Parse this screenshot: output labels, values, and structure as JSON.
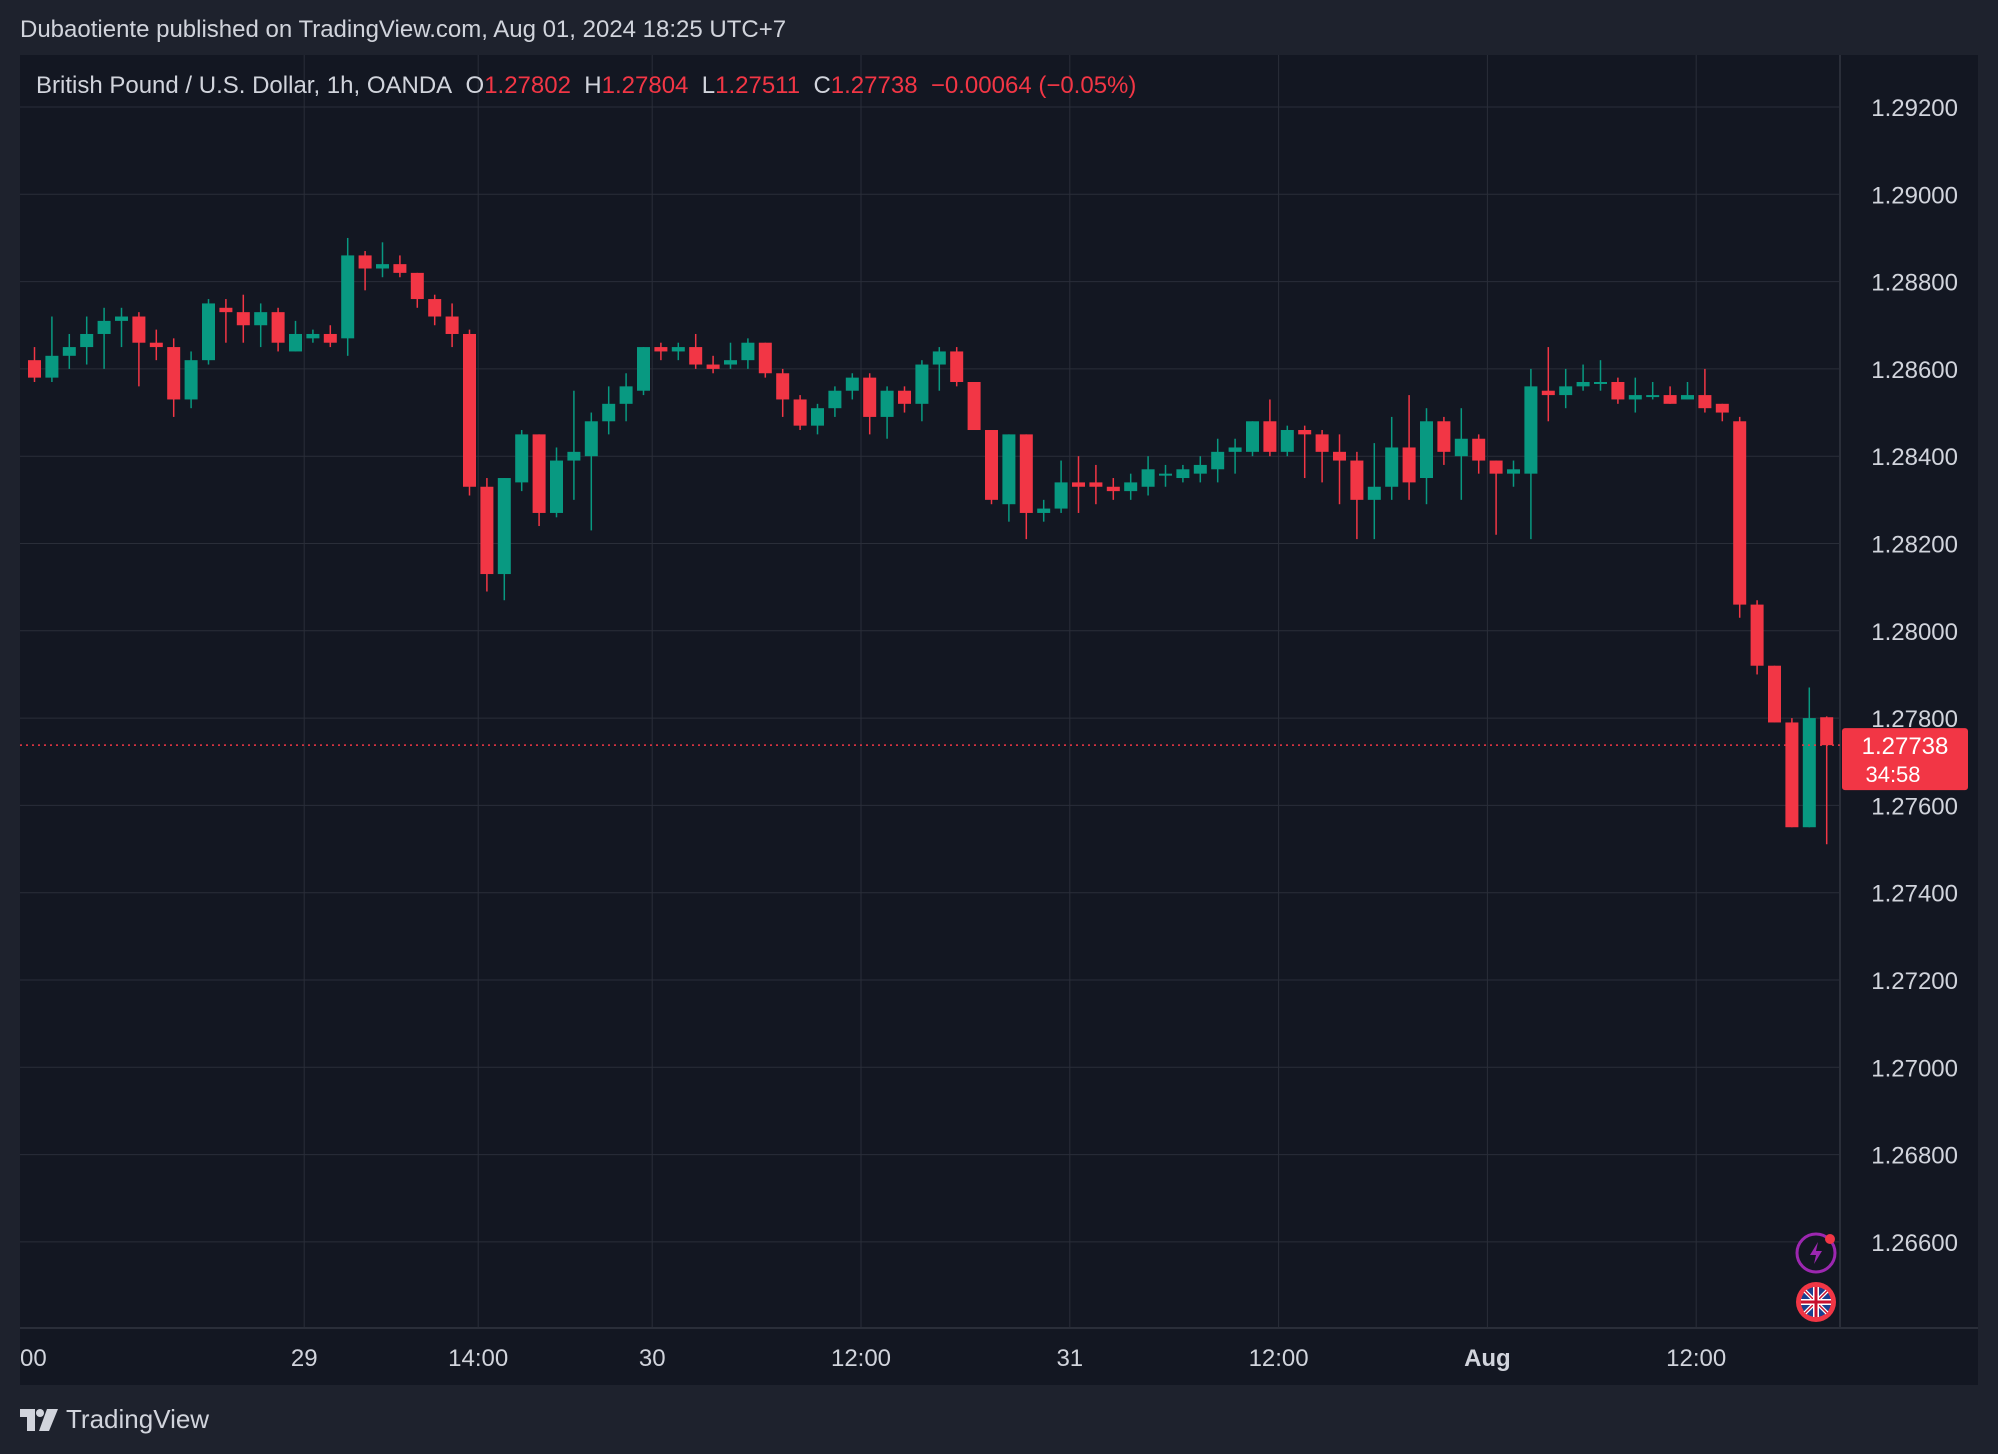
{
  "header": {
    "published": "Dubaotiente published on TradingView.com, Aug 01, 2024 18:25 UTC+7"
  },
  "legend": {
    "symbol": "British Pound / U.S. Dollar, 1h, OANDA",
    "o_label": "O",
    "o_value": "1.27802",
    "h_label": "H",
    "h_value": "1.27804",
    "l_label": "L",
    "l_value": "1.27511",
    "c_label": "C",
    "c_value": "1.27738",
    "change": "−0.00064 (−0.05%)"
  },
  "price_tag": {
    "price": "1.27738",
    "countdown": "34:58"
  },
  "footer": {
    "brand": "TradingView"
  },
  "colors": {
    "up": "#089981",
    "down": "#f23645",
    "background": "#131722",
    "frame": "#1e222d",
    "grid": "#2a2e39",
    "text": "#d1d4dc"
  },
  "icons": [
    "lightning-icon",
    "uk-flag-icon",
    "tradingview-logo-icon"
  ],
  "chart_data": {
    "type": "candlestick",
    "title": "British Pound / U.S. Dollar, 1h, OANDA",
    "ylim": [
      1.2645,
      1.2935
    ],
    "y_ticks": [
      "1.29200",
      "1.29000",
      "1.28800",
      "1.28600",
      "1.28400",
      "1.28200",
      "1.28000",
      "1.27800",
      "1.27600",
      "1.27400",
      "1.27200",
      "1.27000",
      "1.26800",
      "1.26600"
    ],
    "x_ticks": [
      {
        "label": "00",
        "index": 0
      },
      {
        "label": "29",
        "index": 15.5
      },
      {
        "label": "14:00",
        "index": 25.5
      },
      {
        "label": "30",
        "index": 35.5
      },
      {
        "label": "12:00",
        "index": 47.5
      },
      {
        "label": "31",
        "index": 59.5
      },
      {
        "label": "12:00",
        "index": 71.5
      },
      {
        "label": "Aug",
        "index": 83.5
      },
      {
        "label": "12:00",
        "index": 95.5
      }
    ],
    "grid": true,
    "last_price": 1.27738,
    "candles": [
      {
        "o": 1.2862,
        "h": 1.2865,
        "l": 1.2857,
        "c": 1.2858
      },
      {
        "o": 1.2858,
        "h": 1.2872,
        "l": 1.2857,
        "c": 1.2863
      },
      {
        "o": 1.2863,
        "h": 1.2868,
        "l": 1.286,
        "c": 1.2865
      },
      {
        "o": 1.2865,
        "h": 1.2872,
        "l": 1.2861,
        "c": 1.2868
      },
      {
        "o": 1.2868,
        "h": 1.2874,
        "l": 1.286,
        "c": 1.2871
      },
      {
        "o": 1.2871,
        "h": 1.2874,
        "l": 1.2865,
        "c": 1.2872
      },
      {
        "o": 1.2872,
        "h": 1.2873,
        "l": 1.2856,
        "c": 1.2866
      },
      {
        "o": 1.2866,
        "h": 1.2869,
        "l": 1.2862,
        "c": 1.2865
      },
      {
        "o": 1.2865,
        "h": 1.2867,
        "l": 1.2849,
        "c": 1.2853
      },
      {
        "o": 1.2853,
        "h": 1.2864,
        "l": 1.2851,
        "c": 1.2862
      },
      {
        "o": 1.2862,
        "h": 1.2876,
        "l": 1.2861,
        "c": 1.2875
      },
      {
        "o": 1.2874,
        "h": 1.2876,
        "l": 1.2866,
        "c": 1.2873
      },
      {
        "o": 1.2873,
        "h": 1.2877,
        "l": 1.2866,
        "c": 1.287
      },
      {
        "o": 1.287,
        "h": 1.2875,
        "l": 1.2865,
        "c": 1.2873
      },
      {
        "o": 1.2873,
        "h": 1.2874,
        "l": 1.2864,
        "c": 1.2866
      },
      {
        "o": 1.2864,
        "h": 1.2871,
        "l": 1.2864,
        "c": 1.2868
      },
      {
        "o": 1.2867,
        "h": 1.2869,
        "l": 1.2866,
        "c": 1.2868
      },
      {
        "o": 1.2868,
        "h": 1.287,
        "l": 1.2865,
        "c": 1.2866
      },
      {
        "o": 1.2867,
        "h": 1.289,
        "l": 1.2863,
        "c": 1.2886
      },
      {
        "o": 1.2886,
        "h": 1.2887,
        "l": 1.2878,
        "c": 1.2883
      },
      {
        "o": 1.2883,
        "h": 1.2889,
        "l": 1.2881,
        "c": 1.2884
      },
      {
        "o": 1.2884,
        "h": 1.2886,
        "l": 1.2881,
        "c": 1.2882
      },
      {
        "o": 1.2882,
        "h": 1.2882,
        "l": 1.2874,
        "c": 1.2876
      },
      {
        "o": 1.2876,
        "h": 1.2877,
        "l": 1.287,
        "c": 1.2872
      },
      {
        "o": 1.2872,
        "h": 1.2875,
        "l": 1.2865,
        "c": 1.2868
      },
      {
        "o": 1.2868,
        "h": 1.2869,
        "l": 1.2831,
        "c": 1.2833
      },
      {
        "o": 1.2833,
        "h": 1.2835,
        "l": 1.2809,
        "c": 1.2813
      },
      {
        "o": 1.2813,
        "h": 1.2835,
        "l": 1.2807,
        "c": 1.2835
      },
      {
        "o": 1.2834,
        "h": 1.2846,
        "l": 1.2832,
        "c": 1.2845
      },
      {
        "o": 1.2845,
        "h": 1.2845,
        "l": 1.2824,
        "c": 1.2827
      },
      {
        "o": 1.2827,
        "h": 1.2842,
        "l": 1.2826,
        "c": 1.2839
      },
      {
        "o": 1.2839,
        "h": 1.2855,
        "l": 1.283,
        "c": 1.2841
      },
      {
        "o": 1.284,
        "h": 1.285,
        "l": 1.2823,
        "c": 1.2848
      },
      {
        "o": 1.2848,
        "h": 1.2856,
        "l": 1.2845,
        "c": 1.2852
      },
      {
        "o": 1.2852,
        "h": 1.2859,
        "l": 1.2848,
        "c": 1.2856
      },
      {
        "o": 1.2855,
        "h": 1.2865,
        "l": 1.2854,
        "c": 1.2865
      },
      {
        "o": 1.2865,
        "h": 1.2866,
        "l": 1.2862,
        "c": 1.2864
      },
      {
        "o": 1.2864,
        "h": 1.2866,
        "l": 1.2862,
        "c": 1.2865
      },
      {
        "o": 1.2865,
        "h": 1.2868,
        "l": 1.286,
        "c": 1.2861
      },
      {
        "o": 1.2861,
        "h": 1.2863,
        "l": 1.2859,
        "c": 1.286
      },
      {
        "o": 1.2861,
        "h": 1.2866,
        "l": 1.286,
        "c": 1.2862
      },
      {
        "o": 1.2862,
        "h": 1.2867,
        "l": 1.286,
        "c": 1.2866
      },
      {
        "o": 1.2866,
        "h": 1.2866,
        "l": 1.2858,
        "c": 1.2859
      },
      {
        "o": 1.2859,
        "h": 1.286,
        "l": 1.2849,
        "c": 1.2853
      },
      {
        "o": 1.2853,
        "h": 1.2854,
        "l": 1.2846,
        "c": 1.2847
      },
      {
        "o": 1.2847,
        "h": 1.2852,
        "l": 1.2845,
        "c": 1.2851
      },
      {
        "o": 1.2851,
        "h": 1.2856,
        "l": 1.2849,
        "c": 1.2855
      },
      {
        "o": 1.2855,
        "h": 1.2859,
        "l": 1.2853,
        "c": 1.2858
      },
      {
        "o": 1.2858,
        "h": 1.2859,
        "l": 1.2845,
        "c": 1.2849
      },
      {
        "o": 1.2849,
        "h": 1.2856,
        "l": 1.2844,
        "c": 1.2855
      },
      {
        "o": 1.2855,
        "h": 1.2856,
        "l": 1.285,
        "c": 1.2852
      },
      {
        "o": 1.2852,
        "h": 1.2862,
        "l": 1.2848,
        "c": 1.2861
      },
      {
        "o": 1.2861,
        "h": 1.2865,
        "l": 1.2855,
        "c": 1.2864
      },
      {
        "o": 1.2864,
        "h": 1.2865,
        "l": 1.2856,
        "c": 1.2857
      },
      {
        "o": 1.2857,
        "h": 1.2857,
        "l": 1.2846,
        "c": 1.2846
      },
      {
        "o": 1.2846,
        "h": 1.2846,
        "l": 1.2829,
        "c": 1.283
      },
      {
        "o": 1.2829,
        "h": 1.2845,
        "l": 1.2825,
        "c": 1.2845
      },
      {
        "o": 1.2845,
        "h": 1.2845,
        "l": 1.2821,
        "c": 1.2827
      },
      {
        "o": 1.2827,
        "h": 1.283,
        "l": 1.2825,
        "c": 1.2828
      },
      {
        "o": 1.2828,
        "h": 1.2839,
        "l": 1.2827,
        "c": 1.2834
      },
      {
        "o": 1.2834,
        "h": 1.284,
        "l": 1.2827,
        "c": 1.2833
      },
      {
        "o": 1.2834,
        "h": 1.2838,
        "l": 1.2829,
        "c": 1.2833
      },
      {
        "o": 1.2833,
        "h": 1.2835,
        "l": 1.283,
        "c": 1.2832
      },
      {
        "o": 1.2832,
        "h": 1.2836,
        "l": 1.283,
        "c": 1.2834
      },
      {
        "o": 1.2833,
        "h": 1.284,
        "l": 1.2831,
        "c": 1.2837
      },
      {
        "o": 1.2836,
        "h": 1.2838,
        "l": 1.2833,
        "c": 1.2836
      },
      {
        "o": 1.2835,
        "h": 1.2838,
        "l": 1.2834,
        "c": 1.2837
      },
      {
        "o": 1.2836,
        "h": 1.284,
        "l": 1.2834,
        "c": 1.2838
      },
      {
        "o": 1.2837,
        "h": 1.2844,
        "l": 1.2834,
        "c": 1.2841
      },
      {
        "o": 1.2841,
        "h": 1.2844,
        "l": 1.2836,
        "c": 1.2842
      },
      {
        "o": 1.2841,
        "h": 1.2848,
        "l": 1.284,
        "c": 1.2848
      },
      {
        "o": 1.2848,
        "h": 1.2853,
        "l": 1.284,
        "c": 1.2841
      },
      {
        "o": 1.2841,
        "h": 1.2847,
        "l": 1.284,
        "c": 1.2846
      },
      {
        "o": 1.2846,
        "h": 1.2847,
        "l": 1.2835,
        "c": 1.2845
      },
      {
        "o": 1.2845,
        "h": 1.2846,
        "l": 1.2834,
        "c": 1.2841
      },
      {
        "o": 1.2841,
        "h": 1.2845,
        "l": 1.2829,
        "c": 1.2839
      },
      {
        "o": 1.2839,
        "h": 1.2841,
        "l": 1.2821,
        "c": 1.283
      },
      {
        "o": 1.283,
        "h": 1.2843,
        "l": 1.2821,
        "c": 1.2833
      },
      {
        "o": 1.2833,
        "h": 1.2849,
        "l": 1.283,
        "c": 1.2842
      },
      {
        "o": 1.2842,
        "h": 1.2854,
        "l": 1.283,
        "c": 1.2834
      },
      {
        "o": 1.2835,
        "h": 1.2851,
        "l": 1.2829,
        "c": 1.2848
      },
      {
        "o": 1.2848,
        "h": 1.2849,
        "l": 1.2838,
        "c": 1.2841
      },
      {
        "o": 1.284,
        "h": 1.2851,
        "l": 1.283,
        "c": 1.2844
      },
      {
        "o": 1.2844,
        "h": 1.2845,
        "l": 1.2836,
        "c": 1.2839
      },
      {
        "o": 1.2839,
        "h": 1.2839,
        "l": 1.2822,
        "c": 1.2836
      },
      {
        "o": 1.2836,
        "h": 1.2839,
        "l": 1.2833,
        "c": 1.2837
      },
      {
        "o": 1.2836,
        "h": 1.286,
        "l": 1.2821,
        "c": 1.2856
      },
      {
        "o": 1.2855,
        "h": 1.2865,
        "l": 1.2848,
        "c": 1.2854
      },
      {
        "o": 1.2854,
        "h": 1.286,
        "l": 1.2851,
        "c": 1.2856
      },
      {
        "o": 1.2856,
        "h": 1.2861,
        "l": 1.2855,
        "c": 1.2857
      },
      {
        "o": 1.2857,
        "h": 1.2862,
        "l": 1.2855,
        "c": 1.2857
      },
      {
        "o": 1.2857,
        "h": 1.2858,
        "l": 1.2852,
        "c": 1.2853
      },
      {
        "o": 1.2853,
        "h": 1.2858,
        "l": 1.285,
        "c": 1.2854
      },
      {
        "o": 1.2854,
        "h": 1.2857,
        "l": 1.2853,
        "c": 1.2854
      },
      {
        "o": 1.2854,
        "h": 1.2856,
        "l": 1.2852,
        "c": 1.2852
      },
      {
        "o": 1.2853,
        "h": 1.2857,
        "l": 1.2853,
        "c": 1.2854
      },
      {
        "o": 1.2854,
        "h": 1.286,
        "l": 1.285,
        "c": 1.2851
      },
      {
        "o": 1.2852,
        "h": 1.2852,
        "l": 1.2848,
        "c": 1.285
      },
      {
        "o": 1.2848,
        "h": 1.2849,
        "l": 1.2803,
        "c": 1.2806
      },
      {
        "o": 1.2806,
        "h": 1.2807,
        "l": 1.279,
        "c": 1.2792
      },
      {
        "o": 1.2792,
        "h": 1.2792,
        "l": 1.2779,
        "c": 1.2779
      },
      {
        "o": 1.2779,
        "h": 1.278,
        "l": 1.2755,
        "c": 1.2755
      },
      {
        "o": 1.2755,
        "h": 1.2787,
        "l": 1.2755,
        "c": 1.278
      },
      {
        "o": 1.27802,
        "h": 1.27804,
        "l": 1.27511,
        "c": 1.27738
      }
    ]
  }
}
